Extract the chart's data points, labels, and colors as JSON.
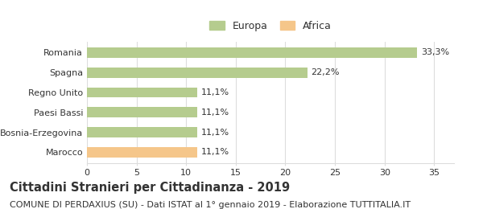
{
  "categories": [
    "Marocco",
    "Bosnia-Erzegovina",
    "Paesi Bassi",
    "Regno Unito",
    "Spagna",
    "Romania"
  ],
  "values": [
    11.1,
    11.1,
    11.1,
    11.1,
    22.2,
    33.3
  ],
  "labels": [
    "11,1%",
    "11,1%",
    "11,1%",
    "11,1%",
    "22,2%",
    "33,3%"
  ],
  "bar_colors": [
    "#f5c68a",
    "#b5cc8e",
    "#b5cc8e",
    "#b5cc8e",
    "#b5cc8e",
    "#b5cc8e"
  ],
  "legend_items": [
    {
      "label": "Europa",
      "color": "#b5cc8e"
    },
    {
      "label": "Africa",
      "color": "#f5c68a"
    }
  ],
  "xlim": [
    0,
    37
  ],
  "xticks": [
    0,
    5,
    10,
    15,
    20,
    25,
    30,
    35
  ],
  "title": "Cittadini Stranieri per Cittadinanza - 2019",
  "subtitle": "COMUNE DI PERDAXIUS (SU) - Dati ISTAT al 1° gennaio 2019 - Elaborazione TUTTITALIA.IT",
  "title_fontsize": 10.5,
  "subtitle_fontsize": 8,
  "label_fontsize": 8,
  "tick_fontsize": 8,
  "legend_fontsize": 9,
  "bar_height": 0.52,
  "bg_color": "#ffffff",
  "grid_color": "#dddddd",
  "text_color": "#333333"
}
